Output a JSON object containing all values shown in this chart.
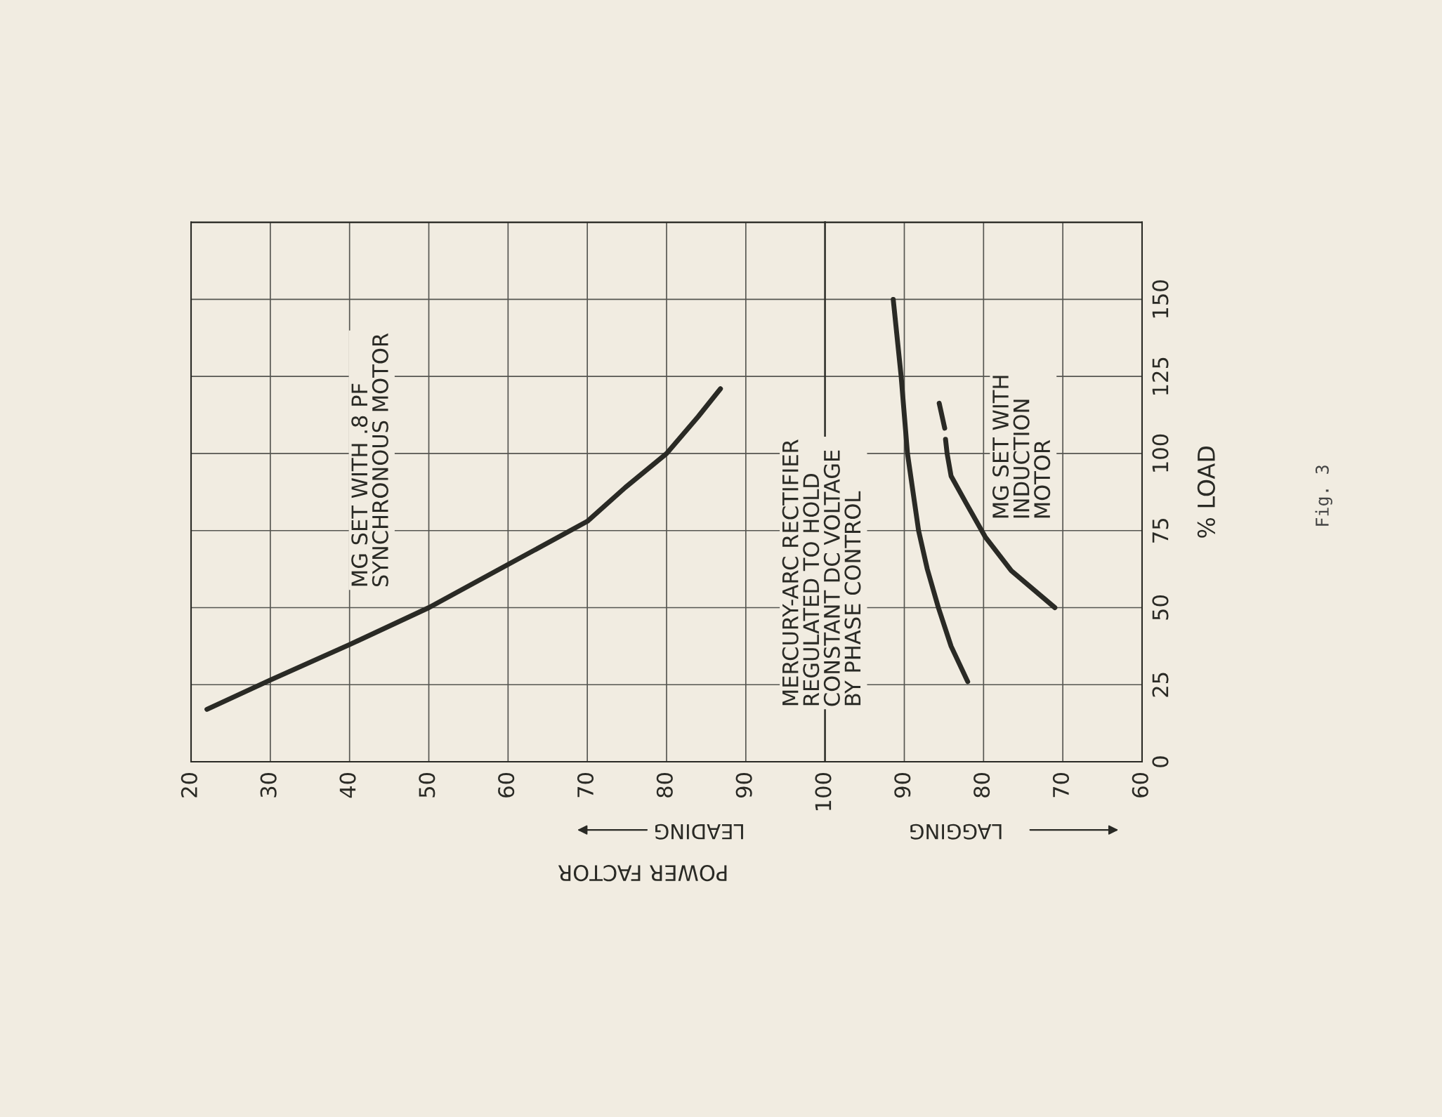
{
  "chart_data": [
    {
      "type": "line",
      "xlim": [
        20,
        100
      ],
      "ylim": [
        0,
        175
      ],
      "xticks": [
        20,
        30,
        40,
        50,
        60,
        70,
        80,
        90,
        100
      ],
      "yticks": [
        0,
        25,
        50,
        75,
        100,
        125,
        150,
        {
          "value": 175,
          "label": null
        }
      ],
      "tick_labels": "x",
      "grid": true,
      "marker": "none",
      "line_style": "solid",
      "series": [
        {
          "name": "MG SET WITH .8 PF\nSYNCHRONOUS MOTOR",
          "color": "#2a2a25",
          "x": [
            22,
            30,
            40,
            50,
            60,
            70,
            74.8,
            80,
            84,
            86.8
          ],
          "values": [
            17,
            26.5,
            38,
            50,
            64,
            78,
            89,
            100,
            112,
            121
          ]
        }
      ],
      "annotations": [
        "POWER FACTOR",
        "LEADING"
      ]
    },
    {
      "type": "line",
      "ylabel": "% LOAD",
      "xlim": [
        100,
        60
      ],
      "ylim": [
        0,
        175
      ],
      "xticks": [
        {
          "value": 100,
          "label": null
        },
        90,
        80,
        70,
        60
      ],
      "yticks": [
        0,
        25,
        50,
        75,
        100,
        125,
        150,
        {
          "value": 175,
          "label": null
        }
      ],
      "grid": true,
      "marker": "none",
      "line_style": "solid",
      "series": [
        {
          "name": "MERCURY-ARC RECTIFIER\nREGULATED TO HOLD\nCONSTANT DC VOLTAGE\nBY PHASE CONTROL",
          "color": "#2a2a25",
          "x": [
            91.4,
            90.4,
            89.6,
            88.2,
            87.1,
            85.7,
            84.1,
            82
          ],
          "values": [
            150,
            125,
            100,
            75,
            62.5,
            50,
            37.5,
            26
          ]
        },
        {
          "name": "MG SET WITH\nINDUCTION\nMOTOR",
          "color": "#2a2a25",
          "x": [
            85.6,
            84.9,
            null,
            84.8,
            84.6,
            84.1,
            82.2,
            79.8,
            76.5,
            71
          ],
          "values": [
            116.3,
            108.2,
            null,
            104.6,
            100,
            92.7,
            83.9,
            73,
            62,
            50
          ]
        }
      ],
      "annotations": [
        "LAGGING",
        "Fig. 3"
      ]
    }
  ]
}
